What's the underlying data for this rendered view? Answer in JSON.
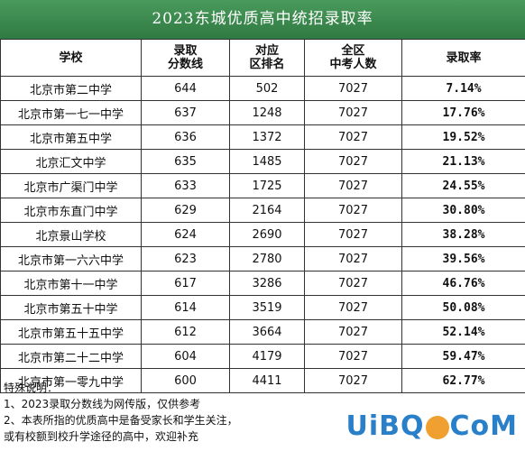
{
  "title": "2023东城优质高中统招录取率",
  "headers": {
    "school": "学校",
    "score": "录取\n分数线",
    "rank": "对应\n区排名",
    "total": "全区\n中考人数",
    "rate": "录取率"
  },
  "rows": [
    {
      "school": "北京市第二中学",
      "score": "644",
      "rank": "502",
      "total": "7027",
      "rate": "7.14%"
    },
    {
      "school": "北京市第一七一中学",
      "score": "637",
      "rank": "1248",
      "total": "7027",
      "rate": "17.76%"
    },
    {
      "school": "北京市第五中学",
      "score": "636",
      "rank": "1372",
      "total": "7027",
      "rate": "19.52%"
    },
    {
      "school": "北京汇文中学",
      "score": "635",
      "rank": "1485",
      "total": "7027",
      "rate": "21.13%"
    },
    {
      "school": "北京市广渠门中学",
      "score": "633",
      "rank": "1725",
      "total": "7027",
      "rate": "24.55%"
    },
    {
      "school": "北京市东直门中学",
      "score": "629",
      "rank": "2164",
      "total": "7027",
      "rate": "30.80%"
    },
    {
      "school": "北京景山学校",
      "score": "624",
      "rank": "2690",
      "total": "7027",
      "rate": "38.28%"
    },
    {
      "school": "北京市第一六六中学",
      "score": "623",
      "rank": "2780",
      "total": "7027",
      "rate": "39.56%"
    },
    {
      "school": "北京市第十一中学",
      "score": "617",
      "rank": "3286",
      "total": "7027",
      "rate": "46.76%"
    },
    {
      "school": "北京市第五十中学",
      "score": "614",
      "rank": "3519",
      "total": "7027",
      "rate": "50.08%"
    },
    {
      "school": "北京市第五十五中学",
      "score": "612",
      "rank": "3664",
      "total": "7027",
      "rate": "52.14%"
    },
    {
      "school": "北京市第二十二中学",
      "score": "604",
      "rank": "4179",
      "total": "7027",
      "rate": "59.47%"
    },
    {
      "school": "北京市第一零九中学",
      "score": "600",
      "rank": "4411",
      "total": "7027",
      "rate": "62.77%"
    }
  ],
  "notes": [
    "特殊说明：",
    "1、2023录取分数线为网传版，仅供参考",
    "2、本表所指的优质高中是备受家长和学生关注，",
    "或有校额到校升学途径的高中，欢迎补充"
  ],
  "watermark": {
    "part1": "UiBQ",
    "part2": "CoM",
    "dot": "."
  },
  "colors": {
    "title_bg": "#3b8a4e",
    "rate_text": "#cc1111",
    "watermark": "#2a7fc9"
  }
}
